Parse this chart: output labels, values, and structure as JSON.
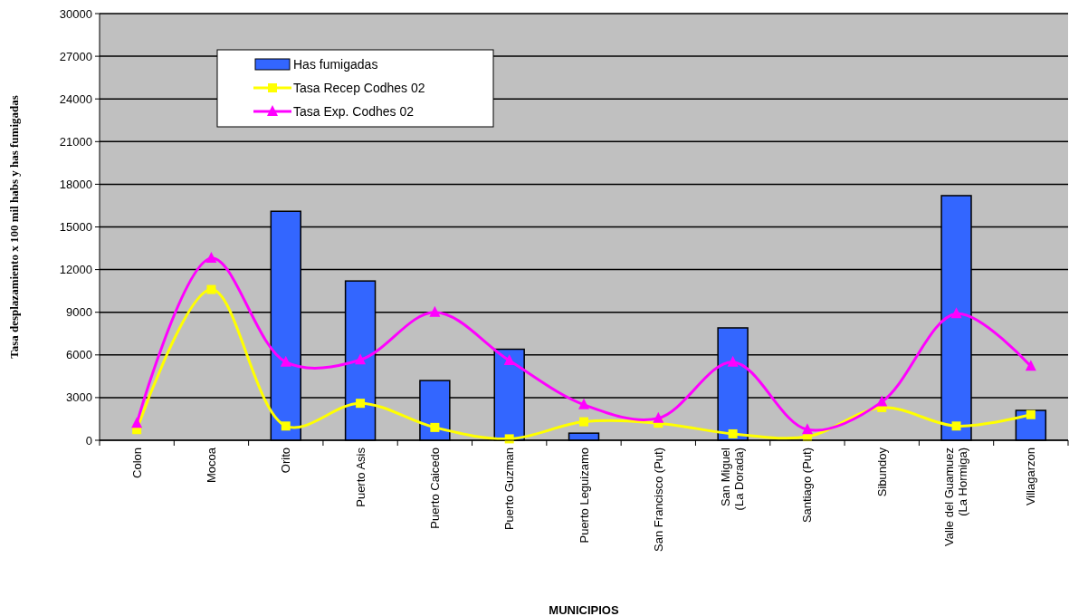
{
  "chart_data": {
    "type": "bar",
    "xlabel": "MUNICIPIOS",
    "ylabel": "Tasa desplazamiento x 100 mil habs y has fumigadas",
    "categories": [
      "Colon",
      "Mocoa",
      "Orito",
      "Puerto Asis",
      "Puerto Caicedo",
      "Puerto Guzman",
      "Puerto Leguizamo",
      "San Francisco (Put)",
      "San Miguel (La Dorada)",
      "Santiago (Put)",
      "Sibundoy",
      "Valle del Guamuez (La Hormiga)",
      "Villagarzon"
    ],
    "series": [
      {
        "name": "Has fumigadas",
        "color": "#3366ff",
        "values": [
          null,
          null,
          16100,
          11200,
          4200,
          6400,
          500,
          null,
          7900,
          null,
          null,
          17200,
          2100
        ]
      },
      {
        "name": "Tasa Recep Codhes 02",
        "type": "line",
        "color": "#ffff00",
        "marker": "square",
        "values": [
          750,
          10600,
          1000,
          2600,
          900,
          100,
          1300,
          1200,
          450,
          250,
          2300,
          1000,
          1800
        ]
      },
      {
        "name": "Tasa Exp. Codhes 02",
        "type": "line",
        "color": "#ff00ff",
        "marker": "triangle",
        "values": [
          1200,
          12800,
          5500,
          5650,
          9000,
          5600,
          2500,
          1550,
          5500,
          750,
          2700,
          8900,
          5200
        ]
      }
    ],
    "ylim": [
      0,
      30000
    ],
    "yticks": [
      0,
      3000,
      6000,
      9000,
      12000,
      15000,
      18000,
      21000,
      24000,
      27000,
      30000
    ],
    "grid": "y",
    "legend": "top left"
  }
}
